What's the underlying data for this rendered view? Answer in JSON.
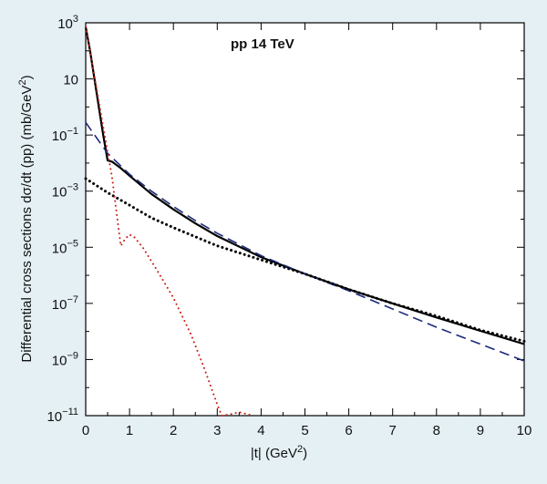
{
  "chart_data": {
    "type": "line",
    "title": "",
    "annotation": "pp 14 TeV",
    "xlabel": {
      "pre": "|t|  (GeV",
      "sup": "2",
      "post": ")"
    },
    "ylabel": {
      "pre": "Differential cross sections dσ/dt (pp) (mb/GeV",
      "sup": "2",
      "post": ")"
    },
    "xlim": [
      0,
      10
    ],
    "ylim_log10": [
      -11,
      3
    ],
    "ylog": true,
    "grid": false,
    "legend": "none",
    "x_ticks": [
      "0",
      "1",
      "2",
      "3",
      "4",
      "5",
      "6",
      "7",
      "8",
      "9",
      "10"
    ],
    "y_ticks": [
      {
        "exp": 3,
        "base": "10",
        "sup": "3"
      },
      {
        "exp": 1,
        "base": "10",
        "sup": ""
      },
      {
        "exp": -1,
        "base": "10",
        "sup": "−1"
      },
      {
        "exp": -3,
        "base": "10",
        "sup": "−3"
      },
      {
        "exp": -5,
        "base": "10",
        "sup": "−5"
      },
      {
        "exp": -7,
        "base": "10",
        "sup": "−7"
      },
      {
        "exp": -9,
        "base": "10",
        "sup": "−9"
      },
      {
        "exp": -11,
        "base": "10",
        "sup": "−11"
      }
    ],
    "series": [
      {
        "style": "solid",
        "color": "#000000",
        "x": [
          0,
          0.1,
          0.2,
          0.3,
          0.4,
          0.5,
          0.6,
          0.8,
          1,
          1.5,
          2,
          2.5,
          3,
          4,
          5,
          6,
          7,
          8,
          9,
          10
        ],
        "log10_y": [
          2.85,
          2.0,
          1.0,
          0.0,
          -1.0,
          -1.9,
          -1.95,
          -2.18,
          -2.45,
          -3.1,
          -3.65,
          -4.15,
          -4.6,
          -5.35,
          -5.95,
          -6.5,
          -7.0,
          -7.5,
          -7.98,
          -8.45
        ]
      },
      {
        "style": "dashed",
        "color": "#1b2a7a",
        "x": [
          0,
          0.5,
          1,
          1.5,
          2,
          2.5,
          3,
          4,
          5,
          6,
          7,
          8,
          9,
          10
        ],
        "log10_y": [
          -0.55,
          -1.65,
          -2.4,
          -3.0,
          -3.55,
          -4.05,
          -4.5,
          -5.3,
          -5.95,
          -6.55,
          -7.2,
          -7.85,
          -8.45,
          -9.05
        ]
      },
      {
        "style": "dotted",
        "color": "#000000",
        "x": [
          0,
          0.5,
          1,
          1.5,
          2,
          3,
          4,
          5,
          6,
          7,
          8,
          9,
          10
        ],
        "log10_y": [
          -2.55,
          -3.05,
          -3.5,
          -3.95,
          -4.3,
          -4.95,
          -5.45,
          -5.95,
          -6.5,
          -7.0,
          -7.45,
          -7.95,
          -8.35
        ]
      },
      {
        "style": "dotted",
        "color": "#c8261a",
        "x": [
          0,
          0.2,
          0.4,
          0.6,
          0.8,
          0.9,
          1.0,
          1.1,
          1.3,
          1.6,
          2.0,
          2.4,
          2.7,
          3.0,
          3.1,
          3.3,
          3.5,
          3.7,
          3.8
        ],
        "log10_y": [
          2.85,
          1.1,
          -0.7,
          -2.5,
          -4.95,
          -4.7,
          -4.55,
          -4.62,
          -5.0,
          -5.75,
          -6.8,
          -8.1,
          -9.3,
          -10.6,
          -11.0,
          -10.95,
          -10.88,
          -10.95,
          -11.0
        ]
      }
    ]
  }
}
